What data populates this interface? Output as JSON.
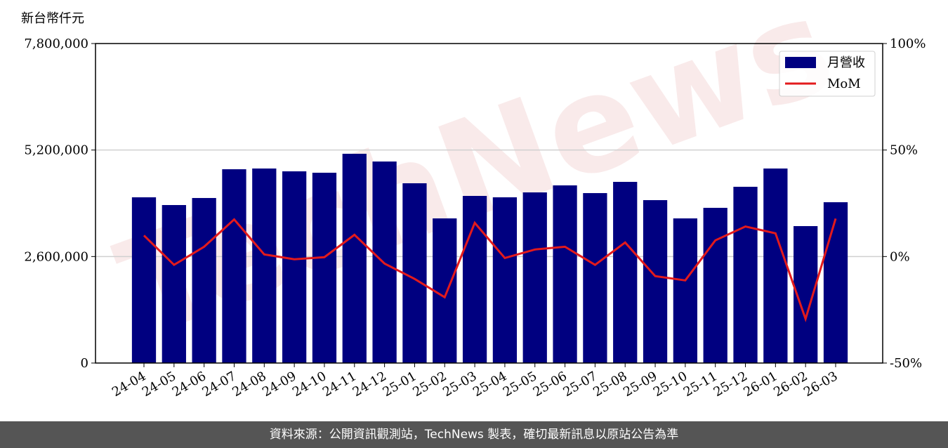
{
  "chart_data": {
    "type": "bar",
    "y_label": "新台幣仟元",
    "watermark": "TechNews",
    "categories": [
      "24-04",
      "24-05",
      "24-06",
      "24-07",
      "24-08",
      "24-09",
      "24-10",
      "24-11",
      "24-12",
      "25-01",
      "25-02",
      "25-03",
      "25-04",
      "25-05",
      "25-06",
      "25-07",
      "25-08",
      "25-09",
      "25-10",
      "25-11",
      "25-12",
      "26-01",
      "26-02",
      "26-03"
    ],
    "series": [
      {
        "name": "月營收",
        "type": "bar",
        "color": "#000080",
        "values": [
          4046000,
          3857000,
          4029000,
          4731000,
          4749000,
          4680000,
          4646000,
          5109000,
          4920000,
          4389000,
          3531000,
          4080000,
          4046000,
          4166000,
          4337000,
          4149000,
          4423000,
          3977000,
          3531000,
          3789000,
          4303000,
          4749000,
          3343000,
          3926000
        ]
      },
      {
        "name": "MoM",
        "type": "line",
        "axis": "y2",
        "color": "#e31a1c",
        "values": [
          9.9,
          -3.9,
          4.6,
          17.4,
          1.0,
          -1.3,
          -0.3,
          10.2,
          -3.3,
          -10.5,
          -19.1,
          15.8,
          -0.7,
          3.3,
          4.6,
          -3.9,
          6.6,
          -9.2,
          -11.2,
          7.6,
          14.1,
          10.9,
          -29.3,
          17.8
        ]
      }
    ],
    "ylim": [
      0,
      7800000
    ],
    "yticks": [
      0,
      {
        "value": 2600000,
        "label": "2,600,000"
      },
      {
        "value": 5200000,
        "label": "5,200,000"
      },
      {
        "value": 7800000,
        "label": "7,800,000"
      }
    ],
    "y2lim": [
      -50,
      100
    ],
    "y2ticks": [
      {
        "value": -50,
        "label": "-50%"
      },
      {
        "value": 0,
        "label": "0%"
      },
      {
        "value": 50,
        "label": "50%"
      },
      {
        "value": 100,
        "label": "100%"
      }
    ],
    "grid": true,
    "legend": "upper right"
  },
  "footer": "資料來源：公開資訊觀測站，TechNews 製表，確切最新訊息以原站公告為準"
}
